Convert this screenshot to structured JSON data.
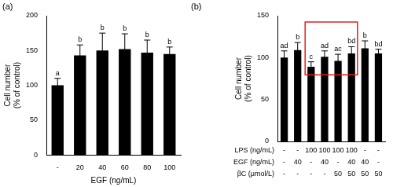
{
  "chart_data": [
    {
      "type": "bar",
      "panel_label": "(a)",
      "x_label": "EGF (ng/mL)",
      "y_label": "Cell number\n(% of control)",
      "categories": [
        "-",
        "20",
        "40",
        "60",
        "80",
        "100"
      ],
      "values": [
        100,
        143,
        150,
        152,
        147,
        145
      ],
      "errors": [
        10,
        15,
        25,
        22,
        18,
        10
      ],
      "letters": [
        "a",
        "b",
        "b",
        "b",
        "b",
        "b"
      ],
      "color": "#000000",
      "ylim": [
        0,
        200
      ],
      "yticks": [
        0,
        50,
        100,
        150,
        200
      ],
      "grid": false
    },
    {
      "type": "bar",
      "panel_label": "(b)",
      "y_label": "Cell number\n(% of control)",
      "categories": [
        null,
        null,
        null,
        null,
        null,
        null,
        null,
        null
      ],
      "values": [
        100,
        109,
        89,
        101,
        96,
        105,
        111,
        105
      ],
      "errors": [
        8,
        9,
        6,
        7,
        8,
        8,
        9,
        5
      ],
      "letters": [
        "ad",
        "b",
        "c",
        "ad",
        "ac",
        "bd",
        "b",
        "bd"
      ],
      "rows": [
        {
          "label": "LPS (ng/mL)",
          "values": [
            "-",
            "-",
            "100",
            "100",
            "100",
            "100",
            "-",
            "-"
          ]
        },
        {
          "label": "EGF (ng/mL)",
          "values": [
            "-",
            "40",
            "-",
            "40",
            "-",
            "40",
            "40",
            "-"
          ]
        },
        {
          "label": "βC (μmol/L)",
          "values": [
            "-",
            "-",
            "-",
            "-",
            "50",
            "50",
            "50",
            "50"
          ]
        }
      ],
      "color": "#000000",
      "ylim": [
        0,
        150
      ],
      "yticks": [
        0,
        50,
        100,
        150
      ],
      "grid": false,
      "tick_labels": "y"
    }
  ]
}
